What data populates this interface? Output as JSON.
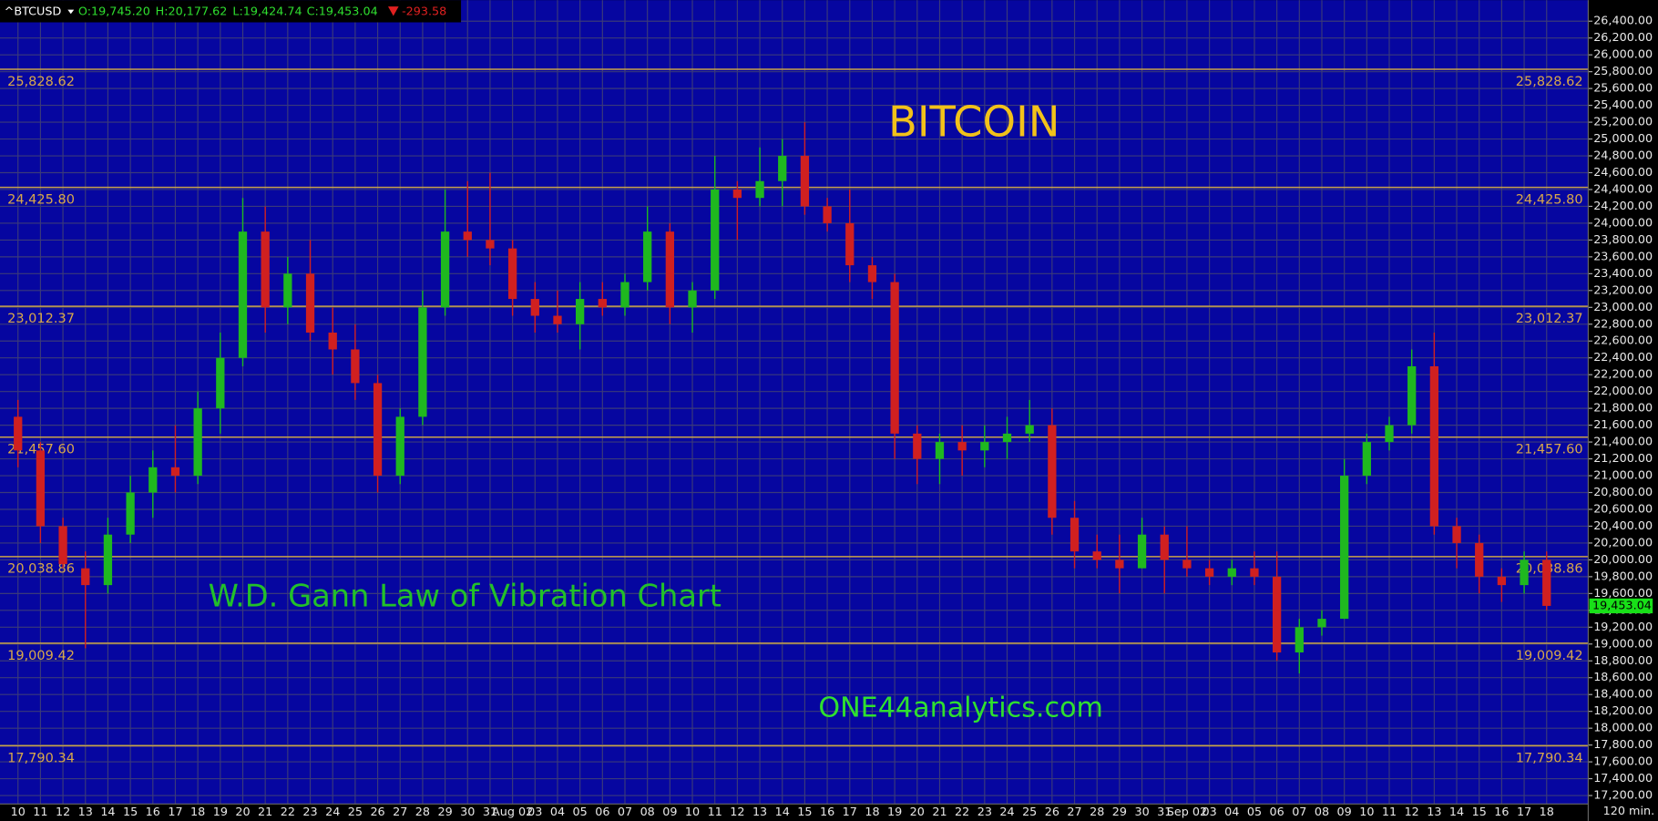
{
  "chart_data": {
    "type": "candlestick",
    "title": "BITCOIN",
    "annotations": [
      "W.D. Gann Law of Vibration Chart",
      "ONE44analytics.com"
    ],
    "timeframe": "120 min.",
    "header": {
      "symbol": "^BTCUSD",
      "open": "O:19,745.20",
      "high": "H:20,177.62",
      "low": "L:19,424.74",
      "close": "C:19,453.04",
      "change": "-293.58"
    },
    "last_price": {
      "value": 19453.04,
      "label": "19,453.04"
    },
    "up_color": "#1fb81f",
    "down_color": "#d02020",
    "level_color": "#c9a24a",
    "grid": true,
    "categories": [
      "10",
      "11",
      "12",
      "13",
      "14",
      "15",
      "16",
      "17",
      "18",
      "19",
      "20",
      "21",
      "22",
      "23",
      "24",
      "25",
      "26",
      "27",
      "28",
      "29",
      "30",
      "31",
      "Aug 02",
      "03",
      "04",
      "05",
      "06",
      "07",
      "08",
      "09",
      "10",
      "11",
      "12",
      "13",
      "14",
      "15",
      "16",
      "17",
      "18",
      "19",
      "20",
      "21",
      "22",
      "23",
      "24",
      "25",
      "26",
      "27",
      "28",
      "29",
      "30",
      "31",
      "Sep 02",
      "03",
      "04",
      "05",
      "06",
      "07",
      "08",
      "09",
      "10",
      "11",
      "12",
      "13",
      "14",
      "15",
      "16",
      "17",
      "18"
    ],
    "open": [
      21700,
      21300,
      20400,
      19900,
      19700,
      20300,
      20800,
      21100,
      21000,
      21800,
      22400,
      23900,
      23000,
      23400,
      22700,
      22500,
      22100,
      21000,
      21700,
      23000,
      23900,
      23800,
      23700,
      23100,
      22900,
      22800,
      23100,
      23000,
      23300,
      23900,
      23000,
      23200,
      24400,
      24300,
      24500,
      24800,
      24200,
      24000,
      23500,
      23300,
      21500,
      21200,
      21400,
      21300,
      21400,
      21500,
      21600,
      20500,
      20100,
      20000,
      19900,
      20300,
      20000,
      19900,
      19800,
      19900,
      19800,
      18900,
      19200,
      19300,
      21000,
      21400,
      21600,
      22300,
      20400,
      20200,
      19800,
      19700,
      20000
    ],
    "high": [
      21900,
      21400,
      20500,
      20100,
      20500,
      21000,
      21300,
      21600,
      22000,
      22700,
      24300,
      24200,
      23600,
      23800,
      23000,
      22800,
      22200,
      21800,
      23200,
      24400,
      24500,
      24600,
      23800,
      23300,
      23200,
      23300,
      23300,
      23400,
      24200,
      24000,
      23300,
      24800,
      24500,
      24900,
      25000,
      25200,
      24300,
      24400,
      23600,
      23400,
      21600,
      21500,
      21600,
      21600,
      21700,
      21900,
      21800,
      20700,
      20300,
      20300,
      20500,
      20400,
      20400,
      20000,
      20000,
      20100,
      20100,
      19300,
      19400,
      21200,
      21500,
      21700,
      22500,
      22700,
      20500,
      20300,
      19900,
      20100,
      20100
    ],
    "low": [
      21100,
      20200,
      19900,
      18950,
      19600,
      20200,
      20500,
      20800,
      20900,
      21500,
      22300,
      22700,
      22800,
      22600,
      22200,
      21900,
      20800,
      20900,
      21600,
      22900,
      23600,
      23500,
      22900,
      22700,
      22700,
      22500,
      22900,
      22900,
      23200,
      22800,
      22700,
      23100,
      23800,
      24200,
      24200,
      24100,
      23900,
      23300,
      23100,
      21200,
      20900,
      20900,
      21000,
      21100,
      21200,
      21400,
      20300,
      19900,
      19900,
      19600,
      19900,
      19600,
      19800,
      19700,
      19700,
      19700,
      18800,
      18650,
      19100,
      19300,
      20900,
      21300,
      21500,
      20300,
      19900,
      19600,
      19500,
      19600,
      19400
    ],
    "close": [
      21300,
      20400,
      19950,
      19700,
      20300,
      20800,
      21100,
      21000,
      21800,
      22400,
      23900,
      23000,
      23400,
      22700,
      22500,
      22100,
      21000,
      21700,
      23000,
      23900,
      23800,
      23700,
      23100,
      22900,
      22800,
      23100,
      23000,
      23300,
      23900,
      23000,
      23200,
      24400,
      24300,
      24500,
      24800,
      24200,
      24000,
      23500,
      23300,
      21500,
      21200,
      21400,
      21300,
      21400,
      21500,
      21600,
      20500,
      20100,
      20000,
      19900,
      20300,
      20000,
      19900,
      19800,
      19900,
      19800,
      18900,
      19200,
      19300,
      21000,
      21400,
      21600,
      22300,
      20400,
      20200,
      19800,
      19700,
      20000,
      19453.04
    ],
    "levels": [
      {
        "value": 25828.62,
        "label": "25,828.62"
      },
      {
        "value": 24425.8,
        "label": "24,425.80"
      },
      {
        "value": 23012.37,
        "label": "23,012.37"
      },
      {
        "value": 21457.6,
        "label": "21,457.60"
      },
      {
        "value": 20038.86,
        "label": "20,038.86"
      },
      {
        "value": 19009.42,
        "label": "19,009.42"
      },
      {
        "value": 17790.34,
        "label": "17,790.34"
      }
    ],
    "ylim": [
      17100,
      26650
    ],
    "yticks": [
      {
        "value": 17200,
        "label": "17,200.00"
      },
      {
        "value": 17400,
        "label": "17,400.00"
      },
      {
        "value": 17600,
        "label": "17,600.00"
      },
      {
        "value": 17800,
        "label": "17,800.00"
      },
      {
        "value": 18000,
        "label": "18,000.00"
      },
      {
        "value": 18200,
        "label": "18,200.00"
      },
      {
        "value": 18400,
        "label": "18,400.00"
      },
      {
        "value": 18600,
        "label": "18,600.00"
      },
      {
        "value": 18800,
        "label": "18,800.00"
      },
      {
        "value": 19000,
        "label": "19,000.00"
      },
      {
        "value": 19200,
        "label": "19,200.00"
      },
      {
        "value": 19400,
        "label": "19,400.00"
      },
      {
        "value": 19600,
        "label": "19,600.00"
      },
      {
        "value": 19800,
        "label": "19,800.00"
      },
      {
        "value": 20000,
        "label": "20,000.00"
      },
      {
        "value": 20200,
        "label": "20,200.00"
      },
      {
        "value": 20400,
        "label": "20,400.00"
      },
      {
        "value": 20600,
        "label": "20,600.00"
      },
      {
        "value": 20800,
        "label": "20,800.00"
      },
      {
        "value": 21000,
        "label": "21,000.00"
      },
      {
        "value": 21200,
        "label": "21,200.00"
      },
      {
        "value": 21400,
        "label": "21,400.00"
      },
      {
        "value": 21600,
        "label": "21,600.00"
      },
      {
        "value": 21800,
        "label": "21,800.00"
      },
      {
        "value": 22000,
        "label": "22,000.00"
      },
      {
        "value": 22200,
        "label": "22,200.00"
      },
      {
        "value": 22400,
        "label": "22,400.00"
      },
      {
        "value": 22600,
        "label": "22,600.00"
      },
      {
        "value": 22800,
        "label": "22,800.00"
      },
      {
        "value": 23000,
        "label": "23,000.00"
      },
      {
        "value": 23200,
        "label": "23,200.00"
      },
      {
        "value": 23400,
        "label": "23,400.00"
      },
      {
        "value": 23600,
        "label": "23,600.00"
      },
      {
        "value": 23800,
        "label": "23,800.00"
      },
      {
        "value": 24000,
        "label": "24,000.00"
      },
      {
        "value": 24200,
        "label": "24,200.00"
      },
      {
        "value": 24400,
        "label": "24,400.00"
      },
      {
        "value": 24600,
        "label": "24,600.00"
      },
      {
        "value": 24800,
        "label": "24,800.00"
      },
      {
        "value": 25000,
        "label": "25,000.00"
      },
      {
        "value": 25200,
        "label": "25,200.00"
      },
      {
        "value": 25400,
        "label": "25,400.00"
      },
      {
        "value": 25600,
        "label": "25,600.00"
      },
      {
        "value": 25800,
        "label": "25,800.00"
      },
      {
        "value": 26000,
        "label": "26,000.00"
      },
      {
        "value": 26200,
        "label": "26,200.00"
      },
      {
        "value": 26400,
        "label": "26,400.00"
      }
    ]
  }
}
